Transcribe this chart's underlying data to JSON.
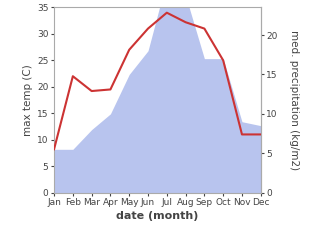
{
  "months": [
    "Jan",
    "Feb",
    "Mar",
    "Apr",
    "May",
    "Jun",
    "Jul",
    "Aug",
    "Sep",
    "Oct",
    "Nov",
    "Dec"
  ],
  "temperature": [
    8.2,
    22.0,
    19.2,
    19.5,
    27.0,
    31.0,
    34.0,
    32.2,
    31.0,
    25.0,
    11.0,
    11.0
  ],
  "precipitation": [
    5.5,
    5.5,
    8.0,
    10.0,
    15.0,
    18.0,
    27.0,
    25.0,
    17.0,
    17.0,
    9.0,
    8.5
  ],
  "temp_color": "#cc3333",
  "precip_fill_color": "#b8c4ee",
  "temp_ylim": [
    0,
    35
  ],
  "precip_ylim": [
    0,
    23.5
  ],
  "temp_yticks": [
    0,
    5,
    10,
    15,
    20,
    25,
    30,
    35
  ],
  "precip_yticks": [
    0,
    5,
    10,
    15,
    20
  ],
  "ylabel_left": "max temp (C)",
  "ylabel_right": "med. precipitation (kg/m2)",
  "xlabel": "date (month)",
  "temp_linewidth": 1.5,
  "tick_fontsize": 6.5,
  "ylabel_fontsize": 7.5,
  "xlabel_fontsize": 8
}
